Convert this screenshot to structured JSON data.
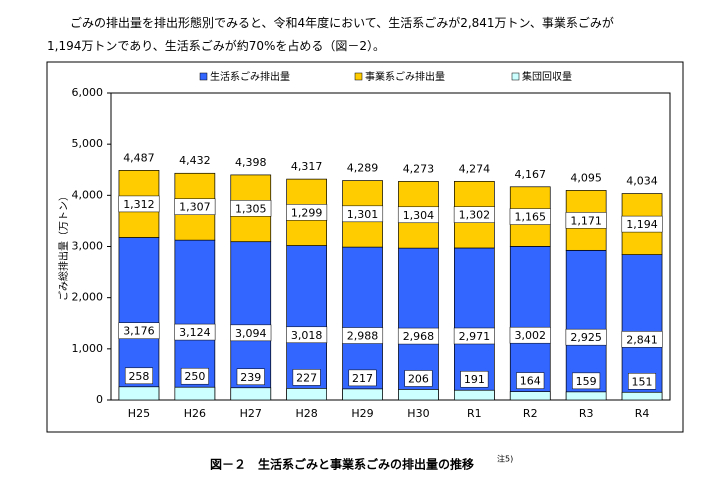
{
  "text": {
    "lines": [
      "ごみの排出量を排出形態別でみると、令和4年度において、生活系ごみが2,841万トン、事業系ごみが",
      "1,194万トンであり、生活系ごみが約70%を占める（図－2）。"
    ]
  },
  "caption": {
    "text": "図－２　生活系ごみと事業系ごみの排出量の推移",
    "note": "注5)"
  },
  "chart_data": {
    "type": "bar",
    "ylabel": "ごみ総排出量（万トン）",
    "categories": [
      "H25",
      "H26",
      "H27",
      "H28",
      "H29",
      "H30",
      "R1",
      "R2",
      "R3",
      "R4"
    ],
    "series": [
      {
        "name": "生活系ごみ排出量",
        "color": "#3366ff",
        "values": [
          3176,
          3124,
          3094,
          3018,
          2988,
          2968,
          2971,
          3002,
          2925,
          2841
        ],
        "value_labels": [
          "3,176",
          "3,124",
          "3,094",
          "3,018",
          "2,988",
          "2,968",
          "2,971",
          "3,002",
          "2,925",
          "2,841"
        ]
      },
      {
        "name": "事業系ごみ排出量",
        "color": "#ffcc00",
        "values": [
          1312,
          1307,
          1305,
          1299,
          1301,
          1304,
          1302,
          1165,
          1171,
          1194
        ],
        "value_labels": [
          "1,312",
          "1,307",
          "1,305",
          "1,299",
          "1,301",
          "1,304",
          "1,302",
          "1,165",
          "1,171",
          "1,194"
        ]
      },
      {
        "name": "集団回収量",
        "color": "#ccffff",
        "stack": false,
        "values": [
          258,
          250,
          239,
          227,
          217,
          206,
          191,
          164,
          159,
          151
        ]
      }
    ],
    "totals": {
      "values": [
        4487,
        4432,
        4398,
        4317,
        4289,
        4273,
        4274,
        4167,
        4095,
        4034
      ],
      "value_labels": [
        "4,487",
        "4,432",
        "4,398",
        "4,317",
        "4,289",
        "4,273",
        "4,274",
        "4,167",
        "4,095",
        "4,034"
      ]
    },
    "ylim": [
      0,
      6000
    ],
    "yticks": [
      0,
      {
        "value": 1000,
        "label": "1,000"
      },
      {
        "value": 2000,
        "label": "2,000"
      },
      {
        "value": 3000,
        "label": "3,000"
      },
      {
        "value": 4000,
        "label": "4,000"
      },
      {
        "value": 5000,
        "label": "5,000"
      },
      {
        "value": 6000,
        "label": "6,000"
      }
    ],
    "grid": false
  }
}
